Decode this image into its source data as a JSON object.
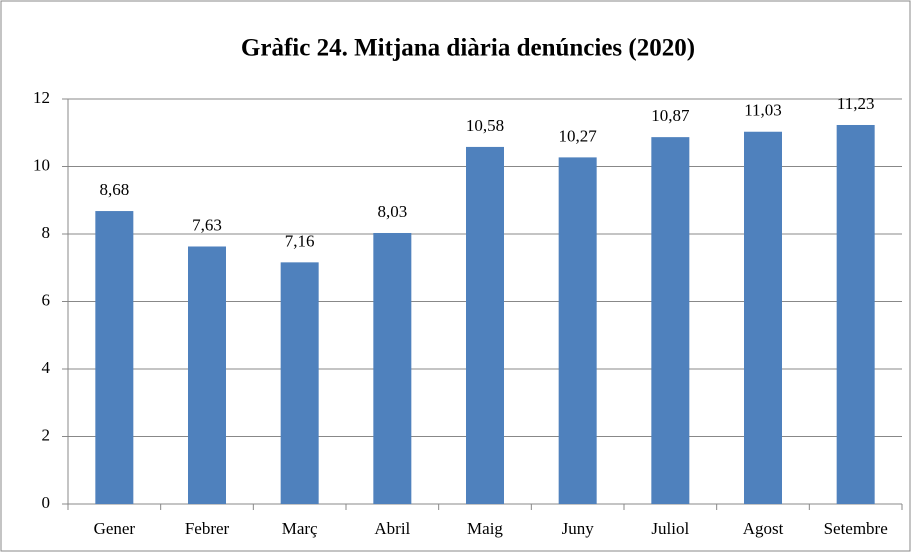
{
  "chart_data": {
    "type": "bar",
    "title": "Gràfic 24. Mitjana diària denúncies (2020)",
    "categories": [
      "Gener",
      "Febrer",
      "Març",
      "Abril",
      "Maig",
      "Juny",
      "Juliol",
      "Agost",
      "Setembre"
    ],
    "values": [
      8.68,
      7.63,
      7.16,
      8.03,
      10.58,
      10.27,
      10.87,
      11.03,
      11.23
    ],
    "value_labels": [
      "8,68",
      "7,63",
      "7,16",
      "8,03",
      "10,58",
      "10,27",
      "10,87",
      "11,03",
      "11,23"
    ],
    "color": "#4f81bd",
    "ylim": [
      0,
      12
    ],
    "yticks": [
      0,
      2,
      4,
      6,
      8,
      10,
      12
    ],
    "grid": true
  }
}
